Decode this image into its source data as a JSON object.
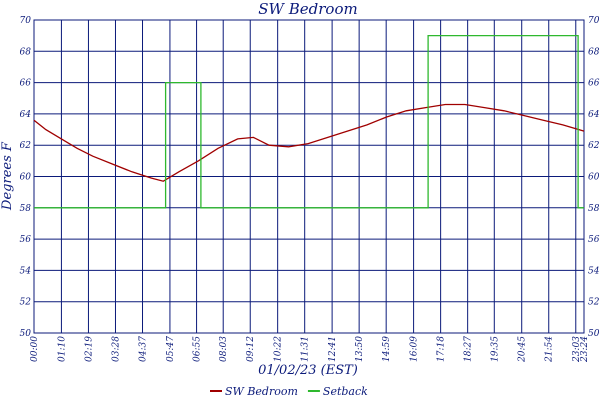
{
  "chart_data": {
    "type": "line",
    "title": "SW Bedroom",
    "xlabel": "01/02/23 (EST)",
    "ylabel": "Degrees F",
    "ylim": [
      50,
      70
    ],
    "yticks": [
      50,
      52,
      54,
      56,
      58,
      60,
      62,
      64,
      66,
      68,
      70
    ],
    "xlim": [
      0,
      1404
    ],
    "xticks": [
      {
        "t": 0,
        "label": "00:00"
      },
      {
        "t": 70,
        "label": "01:10"
      },
      {
        "t": 139,
        "label": "02:19"
      },
      {
        "t": 208,
        "label": "03:28"
      },
      {
        "t": 277,
        "label": "04:37"
      },
      {
        "t": 347,
        "label": "05:47"
      },
      {
        "t": 415,
        "label": "06:55"
      },
      {
        "t": 483,
        "label": "08:03"
      },
      {
        "t": 552,
        "label": "09:12"
      },
      {
        "t": 622,
        "label": "10:22"
      },
      {
        "t": 691,
        "label": "11:31"
      },
      {
        "t": 761,
        "label": "12:41"
      },
      {
        "t": 830,
        "label": "13:50"
      },
      {
        "t": 899,
        "label": "14:59"
      },
      {
        "t": 969,
        "label": "16:09"
      },
      {
        "t": 1038,
        "label": "17:18"
      },
      {
        "t": 1107,
        "label": "18:27"
      },
      {
        "t": 1175,
        "label": "19:35"
      },
      {
        "t": 1245,
        "label": "20:45"
      },
      {
        "t": 1314,
        "label": "21:54"
      },
      {
        "t": 1383,
        "label": "23:03"
      },
      {
        "t": 1404,
        "label": "23:24"
      }
    ],
    "grid": true,
    "legend_position": "bottom",
    "series": [
      {
        "name": "SW Bedroom",
        "color": "#a00000",
        "points": [
          [
            0,
            63.6
          ],
          [
            30,
            63.0
          ],
          [
            70,
            62.4
          ],
          [
            110,
            61.8
          ],
          [
            150,
            61.3
          ],
          [
            200,
            60.8
          ],
          [
            250,
            60.3
          ],
          [
            300,
            59.9
          ],
          [
            330,
            59.7
          ],
          [
            370,
            60.3
          ],
          [
            420,
            61.0
          ],
          [
            470,
            61.8
          ],
          [
            520,
            62.4
          ],
          [
            560,
            62.5
          ],
          [
            600,
            62.0
          ],
          [
            650,
            61.9
          ],
          [
            700,
            62.1
          ],
          [
            750,
            62.5
          ],
          [
            800,
            62.9
          ],
          [
            850,
            63.3
          ],
          [
            900,
            63.8
          ],
          [
            950,
            64.2
          ],
          [
            1000,
            64.4
          ],
          [
            1050,
            64.6
          ],
          [
            1100,
            64.6
          ],
          [
            1150,
            64.4
          ],
          [
            1200,
            64.2
          ],
          [
            1250,
            63.9
          ],
          [
            1300,
            63.6
          ],
          [
            1350,
            63.3
          ],
          [
            1404,
            62.9
          ]
        ]
      },
      {
        "name": "Setback",
        "color": "#2eb82e",
        "points": [
          [
            0,
            58
          ],
          [
            336,
            58
          ],
          [
            336,
            66
          ],
          [
            426,
            66
          ],
          [
            426,
            58
          ],
          [
            1006,
            58
          ],
          [
            1006,
            69
          ],
          [
            1389,
            69
          ],
          [
            1389,
            58
          ],
          [
            1404,
            58
          ]
        ]
      }
    ]
  }
}
